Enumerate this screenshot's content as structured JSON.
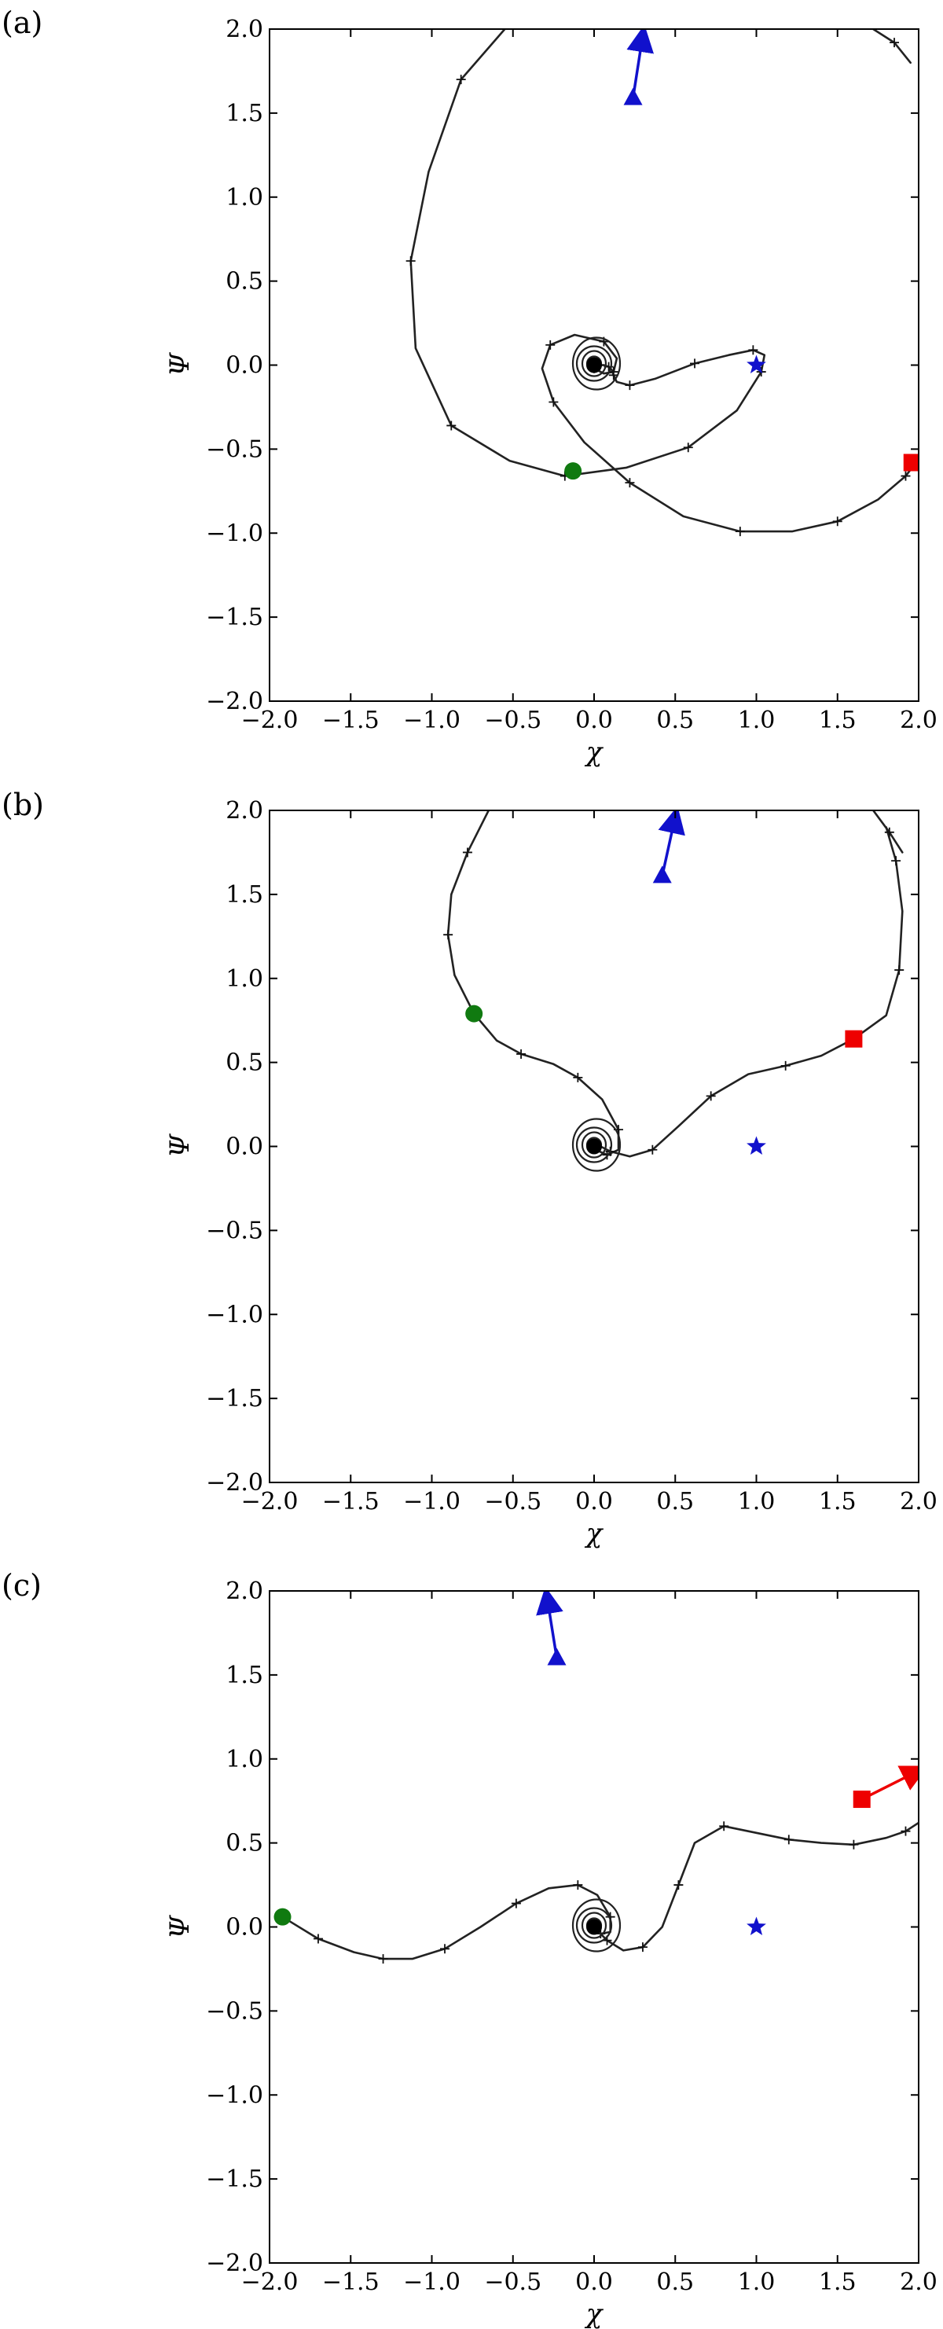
{
  "colors": {
    "initial": "#107a10",
    "current": "#ee0000",
    "target": "#1111cc",
    "curve": "#222222"
  },
  "chart_data": [
    {
      "type": "line",
      "panel_label": "(a)",
      "xlabel": "χ",
      "ylabel": "Ψ",
      "xlim": [
        -2.0,
        2.0
      ],
      "ylim": [
        -2.0,
        2.0
      ],
      "xticks": [
        "−2.0",
        "−1.5",
        "−1.0",
        "−0.5",
        "0.0",
        "0.5",
        "1.0",
        "1.5",
        "2.0"
      ],
      "yticks": [
        "2.0",
        "1.5",
        "1.0",
        "0.5",
        "0.0",
        "−0.5",
        "−1.0",
        "−1.5",
        "−2.0"
      ],
      "grid": false,
      "series": [
        {
          "x": [
            -0.55,
            -0.82,
            -1.02,
            -1.13,
            -1.1,
            -0.88,
            -0.52,
            -0.18,
            0.2,
            0.58,
            0.88,
            1.03,
            1.05,
            0.98,
            0.83,
            0.62,
            0.38,
            0.22,
            0.14,
            0.12,
            0.11,
            0.09,
            0.06,
            0.03
          ],
          "y": [
            2.0,
            1.7,
            1.15,
            0.62,
            0.1,
            -0.36,
            -0.57,
            -0.66,
            -0.61,
            -0.49,
            -0.27,
            -0.04,
            0.06,
            0.09,
            0.06,
            0.01,
            -0.08,
            -0.12,
            -0.1,
            -0.06,
            -0.03,
            -0.01,
            0.0,
            0.0
          ]
        },
        {
          "x": [
            2.0,
            1.92,
            1.75,
            1.5,
            1.22,
            0.9,
            0.55,
            0.22,
            -0.06,
            -0.25,
            -0.32,
            -0.27,
            -0.12,
            0.06,
            0.14,
            0.12,
            0.06,
            0.0
          ],
          "y": [
            -0.56,
            -0.66,
            -0.8,
            -0.93,
            -0.99,
            -0.99,
            -0.9,
            -0.7,
            -0.46,
            -0.22,
            -0.02,
            0.12,
            0.18,
            0.14,
            0.04,
            -0.04,
            -0.05,
            -0.02
          ]
        },
        {
          "x": [
            1.95,
            1.85,
            1.72
          ],
          "y": [
            1.8,
            1.92,
            2.0
          ]
        }
      ],
      "initial_point": [
        -0.13,
        -0.63
      ],
      "current_point": [
        1.96,
        -0.58
      ],
      "target_point": [
        1.0,
        0.0
      ],
      "arrow": {
        "from": [
          0.24,
          1.59
        ],
        "to": [
          0.3,
          2.0
        ]
      }
    },
    {
      "type": "line",
      "panel_label": "(b)",
      "xlabel": "χ",
      "ylabel": "Ψ",
      "xlim": [
        -2.0,
        2.0
      ],
      "ylim": [
        -2.0,
        2.0
      ],
      "xticks": [
        "−2.0",
        "−1.5",
        "−1.0",
        "−0.5",
        "0.0",
        "0.5",
        "1.0",
        "1.5",
        "2.0"
      ],
      "yticks": [
        "2.0",
        "1.5",
        "1.0",
        "0.5",
        "0.0",
        "−0.5",
        "−1.0",
        "−1.5",
        "−2.0"
      ],
      "grid": false,
      "series": [
        {
          "x": [
            -0.65,
            -0.78,
            -0.88,
            -0.9,
            -0.86,
            -0.74,
            -0.6,
            -0.45,
            -0.25,
            -0.1,
            0.05,
            0.15,
            0.15,
            0.08,
            0.01
          ],
          "y": [
            2.0,
            1.75,
            1.5,
            1.26,
            1.02,
            0.79,
            0.63,
            0.55,
            0.49,
            0.41,
            0.28,
            0.1,
            -0.02,
            -0.05,
            -0.02
          ]
        },
        {
          "x": [
            1.8,
            1.86,
            1.9,
            1.88,
            1.8,
            1.6,
            1.4,
            1.18,
            0.95,
            0.72,
            0.52,
            0.36,
            0.22,
            0.1,
            0.04,
            0.0
          ],
          "y": [
            1.9,
            1.7,
            1.4,
            1.05,
            0.78,
            0.64,
            0.54,
            0.48,
            0.43,
            0.3,
            0.12,
            -0.02,
            -0.06,
            -0.03,
            0.0,
            0.0
          ]
        },
        {
          "x": [
            1.9,
            1.82,
            1.72
          ],
          "y": [
            1.75,
            1.87,
            2.0
          ]
        }
      ],
      "initial_point": [
        -0.74,
        0.79
      ],
      "current_point": [
        1.6,
        0.64
      ],
      "target_point": [
        1.0,
        0.0
      ],
      "arrow": {
        "from": [
          0.42,
          1.61
        ],
        "to": [
          0.5,
          2.0
        ]
      }
    },
    {
      "type": "line",
      "panel_label": "(c)",
      "xlabel": "χ",
      "ylabel": "Ψ",
      "xlim": [
        -2.0,
        2.0
      ],
      "ylim": [
        -2.0,
        2.0
      ],
      "xticks": [
        "−2.0",
        "−1.5",
        "−1.0",
        "−0.5",
        "0.0",
        "0.5",
        "1.0",
        "1.5",
        "2.0"
      ],
      "yticks": [
        "2.0",
        "1.5",
        "1.0",
        "0.5",
        "0.0",
        "−0.5",
        "−1.0",
        "−1.5",
        "−2.0"
      ],
      "grid": false,
      "series": [
        {
          "x": [
            -1.92,
            -1.7,
            -1.48,
            -1.3,
            -1.12,
            -0.92,
            -0.7,
            -0.48,
            -0.28,
            -0.1,
            0.02,
            0.1,
            0.1,
            0.04
          ],
          "y": [
            0.06,
            -0.07,
            -0.15,
            -0.19,
            -0.19,
            -0.13,
            0.0,
            0.14,
            0.23,
            0.25,
            0.19,
            0.06,
            -0.03,
            -0.04
          ]
        },
        {
          "x": [
            2.0,
            1.92,
            1.8,
            1.6,
            1.4,
            1.2,
            1.0,
            0.8,
            0.62,
            0.52,
            0.42,
            0.3,
            0.18,
            0.08,
            0.03
          ],
          "y": [
            0.62,
            0.57,
            0.53,
            0.49,
            0.5,
            0.52,
            0.56,
            0.6,
            0.5,
            0.25,
            0.0,
            -0.12,
            -0.14,
            -0.08,
            -0.03
          ]
        }
      ],
      "initial_point": [
        -1.92,
        0.06
      ],
      "current_point": [
        1.65,
        0.76
      ],
      "target_point": [
        1.0,
        0.0
      ],
      "arrow": {
        "from": [
          -0.23,
          1.6
        ],
        "to": [
          -0.29,
          2.0
        ]
      },
      "red_arrow": {
        "from": [
          1.65,
          0.76
        ],
        "to": [
          2.0,
          0.93
        ]
      }
    }
  ]
}
